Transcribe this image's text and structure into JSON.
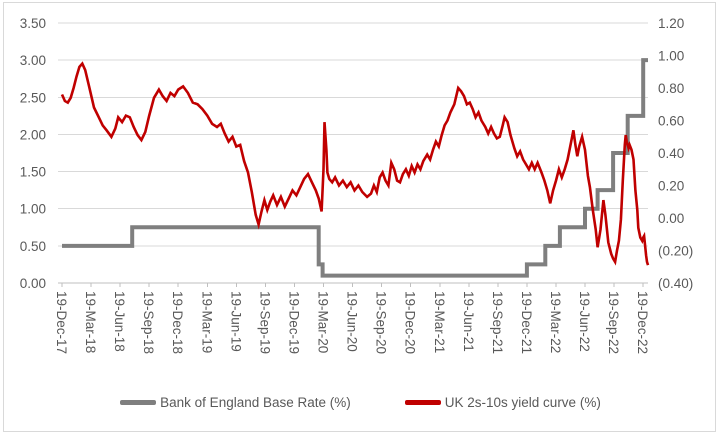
{
  "chart_data": {
    "type": "line",
    "title": "",
    "x_axis": {
      "note": "x values are months since 19-Dec-2017, quarterly ticks",
      "tick_labels": [
        "19-Dec-17",
        "19-Mar-18",
        "19-Jun-18",
        "19-Sep-18",
        "19-Dec-18",
        "19-Mar-19",
        "19-Jun-19",
        "19-Sep-19",
        "19-Dec-19",
        "19-Mar-20",
        "19-Jun-20",
        "19-Sep-20",
        "19-Dec-20",
        "19-Mar-21",
        "19-Jun-21",
        "19-Sep-21",
        "19-Dec-21",
        "19-Mar-22",
        "19-Jun-22",
        "19-Sep-22",
        "19-Dec-22"
      ],
      "tick_positions_months": [
        0,
        3,
        6,
        9,
        12,
        15,
        18,
        21,
        24,
        27,
        30,
        33,
        36,
        39,
        42,
        45,
        48,
        51,
        54,
        57,
        60
      ],
      "range_months": [
        0,
        60.5
      ]
    },
    "left_axis": {
      "series": "Bank of England Base Rate (%)",
      "min": 0,
      "max": 3.5,
      "tick_labels": [
        "3.50",
        "3.00",
        "2.50",
        "2.00",
        "1.50",
        "1.00",
        "0.50",
        "0.00"
      ]
    },
    "right_axis": {
      "series": "UK 2s-10s yield curve (%)",
      "min": -0.4,
      "max": 1.2,
      "tick_labels": [
        "1.20",
        "1.00",
        "0.80",
        "0.60",
        "0.40",
        "0.20",
        "0.00",
        "(0.20)",
        "(0.40)"
      ]
    },
    "grid": true,
    "legend_position": "bottom",
    "series": [
      {
        "name": "Bank of England Base Rate (%)",
        "axis": "left",
        "color": "#7F7F7F",
        "style": "step",
        "stroke_width": 4,
        "points": [
          [
            0,
            0.5
          ],
          [
            7.25,
            0.5
          ],
          [
            7.25,
            0.75
          ],
          [
            26.5,
            0.75
          ],
          [
            26.5,
            0.25
          ],
          [
            26.9,
            0.25
          ],
          [
            26.9,
            0.1
          ],
          [
            48.0,
            0.1
          ],
          [
            48.0,
            0.25
          ],
          [
            49.9,
            0.25
          ],
          [
            49.9,
            0.5
          ],
          [
            51.4,
            0.5
          ],
          [
            51.4,
            0.75
          ],
          [
            54.0,
            0.75
          ],
          [
            54.0,
            1.0
          ],
          [
            55.3,
            1.0
          ],
          [
            55.3,
            1.25
          ],
          [
            56.9,
            1.25
          ],
          [
            56.9,
            1.75
          ],
          [
            58.4,
            1.75
          ],
          [
            58.4,
            2.25
          ],
          [
            60.0,
            2.25
          ],
          [
            60.0,
            3.0
          ],
          [
            60.5,
            3.0
          ]
        ]
      },
      {
        "name": "UK 2s-10s yield curve (%)",
        "axis": "right",
        "color": "#C00000",
        "style": "line",
        "stroke_width": 2.6,
        "points": [
          [
            0,
            0.76
          ],
          [
            0.3,
            0.72
          ],
          [
            0.6,
            0.71
          ],
          [
            0.9,
            0.74
          ],
          [
            1.2,
            0.8
          ],
          [
            1.5,
            0.87
          ],
          [
            1.8,
            0.93
          ],
          [
            2.1,
            0.95
          ],
          [
            2.4,
            0.91
          ],
          [
            2.8,
            0.81
          ],
          [
            3.3,
            0.68
          ],
          [
            3.8,
            0.62
          ],
          [
            4.2,
            0.57
          ],
          [
            4.6,
            0.54
          ],
          [
            5.1,
            0.5
          ],
          [
            5.5,
            0.55
          ],
          [
            5.8,
            0.62
          ],
          [
            6.2,
            0.59
          ],
          [
            6.6,
            0.63
          ],
          [
            7.0,
            0.62
          ],
          [
            7.4,
            0.56
          ],
          [
            7.8,
            0.51
          ],
          [
            8.2,
            0.48
          ],
          [
            8.6,
            0.53
          ],
          [
            9.0,
            0.63
          ],
          [
            9.5,
            0.74
          ],
          [
            10.0,
            0.79
          ],
          [
            10.4,
            0.75
          ],
          [
            10.8,
            0.72
          ],
          [
            11.2,
            0.77
          ],
          [
            11.6,
            0.75
          ],
          [
            12.0,
            0.79
          ],
          [
            12.5,
            0.81
          ],
          [
            13.0,
            0.77
          ],
          [
            13.5,
            0.71
          ],
          [
            14.0,
            0.7
          ],
          [
            14.5,
            0.67
          ],
          [
            15.0,
            0.63
          ],
          [
            15.5,
            0.58
          ],
          [
            16.0,
            0.56
          ],
          [
            16.4,
            0.58
          ],
          [
            16.8,
            0.52
          ],
          [
            17.2,
            0.47
          ],
          [
            17.6,
            0.5
          ],
          [
            18.0,
            0.44
          ],
          [
            18.4,
            0.45
          ],
          [
            18.8,
            0.35
          ],
          [
            19.2,
            0.28
          ],
          [
            19.6,
            0.16
          ],
          [
            20.0,
            0.02
          ],
          [
            20.3,
            -0.04
          ],
          [
            20.6,
            0.04
          ],
          [
            20.9,
            0.11
          ],
          [
            21.2,
            0.05
          ],
          [
            21.5,
            0.1
          ],
          [
            21.8,
            0.14
          ],
          [
            22.2,
            0.08
          ],
          [
            22.6,
            0.13
          ],
          [
            23.0,
            0.07
          ],
          [
            23.4,
            0.12
          ],
          [
            23.8,
            0.17
          ],
          [
            24.2,
            0.14
          ],
          [
            24.6,
            0.19
          ],
          [
            25.0,
            0.24
          ],
          [
            25.4,
            0.27
          ],
          [
            25.8,
            0.22
          ],
          [
            26.2,
            0.17
          ],
          [
            26.5,
            0.12
          ],
          [
            26.8,
            0.04
          ],
          [
            27.0,
            0.3
          ],
          [
            27.1,
            0.59
          ],
          [
            27.3,
            0.42
          ],
          [
            27.4,
            0.28
          ],
          [
            27.6,
            0.24
          ],
          [
            27.9,
            0.22
          ],
          [
            28.2,
            0.25
          ],
          [
            28.6,
            0.2
          ],
          [
            29.0,
            0.23
          ],
          [
            29.4,
            0.19
          ],
          [
            29.8,
            0.22
          ],
          [
            30.2,
            0.17
          ],
          [
            30.6,
            0.2
          ],
          [
            31.0,
            0.16
          ],
          [
            31.5,
            0.13
          ],
          [
            31.9,
            0.15
          ],
          [
            32.2,
            0.2
          ],
          [
            32.5,
            0.16
          ],
          [
            32.8,
            0.25
          ],
          [
            33.1,
            0.28
          ],
          [
            33.4,
            0.23
          ],
          [
            33.7,
            0.2
          ],
          [
            34.0,
            0.34
          ],
          [
            34.3,
            0.3
          ],
          [
            34.6,
            0.23
          ],
          [
            34.9,
            0.22
          ],
          [
            35.2,
            0.27
          ],
          [
            35.5,
            0.3
          ],
          [
            35.8,
            0.26
          ],
          [
            36.1,
            0.32
          ],
          [
            36.4,
            0.28
          ],
          [
            36.7,
            0.33
          ],
          [
            37.0,
            0.3
          ],
          [
            37.3,
            0.35
          ],
          [
            37.7,
            0.39
          ],
          [
            38.0,
            0.36
          ],
          [
            38.3,
            0.42
          ],
          [
            38.6,
            0.47
          ],
          [
            38.9,
            0.44
          ],
          [
            39.2,
            0.51
          ],
          [
            39.5,
            0.57
          ],
          [
            39.8,
            0.6
          ],
          [
            40.1,
            0.65
          ],
          [
            40.5,
            0.7
          ],
          [
            40.9,
            0.8
          ],
          [
            41.2,
            0.78
          ],
          [
            41.5,
            0.75
          ],
          [
            41.8,
            0.7
          ],
          [
            42.1,
            0.71
          ],
          [
            42.4,
            0.67
          ],
          [
            42.7,
            0.62
          ],
          [
            43.0,
            0.65
          ],
          [
            43.3,
            0.6
          ],
          [
            43.7,
            0.56
          ],
          [
            44.0,
            0.52
          ],
          [
            44.3,
            0.56
          ],
          [
            44.6,
            0.52
          ],
          [
            44.9,
            0.49
          ],
          [
            45.2,
            0.5
          ],
          [
            45.5,
            0.57
          ],
          [
            45.7,
            0.62
          ],
          [
            46.0,
            0.59
          ],
          [
            46.3,
            0.51
          ],
          [
            46.7,
            0.43
          ],
          [
            47.0,
            0.38
          ],
          [
            47.3,
            0.41
          ],
          [
            47.6,
            0.36
          ],
          [
            47.9,
            0.33
          ],
          [
            48.2,
            0.3
          ],
          [
            48.5,
            0.34
          ],
          [
            48.8,
            0.3
          ],
          [
            49.1,
            0.34
          ],
          [
            49.5,
            0.28
          ],
          [
            49.8,
            0.23
          ],
          [
            50.1,
            0.17
          ],
          [
            50.4,
            0.09
          ],
          [
            50.7,
            0.17
          ],
          [
            51.0,
            0.23
          ],
          [
            51.3,
            0.3
          ],
          [
            51.6,
            0.25
          ],
          [
            51.9,
            0.3
          ],
          [
            52.2,
            0.36
          ],
          [
            52.6,
            0.48
          ],
          [
            52.8,
            0.54
          ],
          [
            53.0,
            0.45
          ],
          [
            53.2,
            0.38
          ],
          [
            53.4,
            0.44
          ],
          [
            53.7,
            0.5
          ],
          [
            54.0,
            0.42
          ],
          [
            54.3,
            0.26
          ],
          [
            54.5,
            0.19
          ],
          [
            54.8,
            0.05
          ],
          [
            55.1,
            -0.07
          ],
          [
            55.3,
            -0.18
          ],
          [
            55.6,
            -0.07
          ],
          [
            55.9,
            0.11
          ],
          [
            56.1,
            0.02
          ],
          [
            56.4,
            -0.15
          ],
          [
            56.7,
            -0.22
          ],
          [
            56.9,
            -0.25
          ],
          [
            57.1,
            -0.27
          ],
          [
            57.3,
            -0.2
          ],
          [
            57.5,
            -0.14
          ],
          [
            57.7,
            -0.01
          ],
          [
            57.9,
            0.23
          ],
          [
            58.1,
            0.45
          ],
          [
            58.2,
            0.51
          ],
          [
            58.3,
            0.47
          ],
          [
            58.5,
            0.43
          ],
          [
            58.6,
            0.45
          ],
          [
            58.8,
            0.42
          ],
          [
            59.0,
            0.36
          ],
          [
            59.2,
            0.17
          ],
          [
            59.4,
            0.05
          ],
          [
            59.5,
            -0.06
          ],
          [
            59.7,
            -0.12
          ],
          [
            59.9,
            -0.14
          ],
          [
            60.0,
            -0.12
          ],
          [
            60.1,
            -0.11
          ],
          [
            60.2,
            -0.17
          ],
          [
            60.3,
            -0.23
          ],
          [
            60.4,
            -0.27
          ],
          [
            60.5,
            -0.29
          ]
        ]
      }
    ]
  },
  "legend": {
    "items": [
      {
        "label": "Bank of England Base Rate (%)",
        "color": "#7F7F7F"
      },
      {
        "label": "UK 2s-10s yield curve (%)",
        "color": "#C00000"
      }
    ]
  },
  "colors": {
    "grid": "#D9D9D9",
    "axis_line": "#BFBFBF",
    "label_text": "#595959",
    "background": "#FFFFFF",
    "figure_border": "#D9D9D9"
  }
}
